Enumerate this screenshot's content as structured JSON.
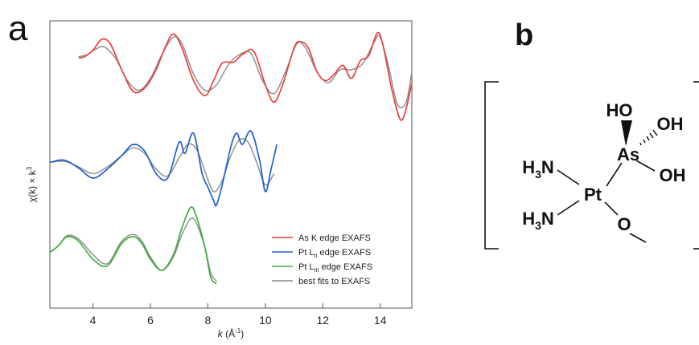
{
  "panel_a_label": "a",
  "panel_b_label": "b",
  "chart_data": {
    "type": "line",
    "title": "",
    "xlabel_main": "k",
    "xlabel_unit": "(Å",
    "xlabel_unit_exp": "-1",
    "xlabel_unit_close": ")",
    "ylabel_main": "χ(k) × k",
    "ylabel_exp": "3",
    "xlim": [
      2.5,
      15.1
    ],
    "x_ticks": [
      4,
      6,
      8,
      10,
      12,
      14
    ],
    "x_tick_labels": [
      "4",
      "6",
      "8",
      "10",
      "12",
      "14"
    ],
    "grid": false,
    "legend_position": "bottom-right",
    "series": [
      {
        "name": "As K edge EXAFS",
        "color": "#e8413b",
        "x": [
          3.5,
          3.7,
          4.0,
          4.3,
          4.6,
          5.0,
          5.4,
          5.8,
          6.2,
          6.5,
          6.8,
          7.1,
          7.5,
          7.9,
          8.2,
          8.5,
          8.9,
          9.2,
          9.6,
          10.0,
          10.3,
          10.6,
          11.0,
          11.2,
          11.5,
          11.8,
          12.1,
          12.4,
          12.7,
          13.0,
          13.3,
          13.6,
          13.9,
          14.1,
          14.4,
          14.7,
          14.9,
          15.1
        ],
        "y": [
          0.85,
          0.9,
          1.2,
          1.7,
          1.5,
          0.3,
          -0.7,
          -0.55,
          0.3,
          1.3,
          1.95,
          1.3,
          -0.2,
          -0.9,
          -0.2,
          0.6,
          0.65,
          1.0,
          1.15,
          -0.4,
          -1.2,
          -0.4,
          1.3,
          1.6,
          1.3,
          0.2,
          -0.2,
          0.1,
          0.5,
          -0.1,
          0.7,
          0.95,
          2.0,
          1.4,
          -0.6,
          -2.0,
          -1.5,
          -0.3
        ]
      },
      {
        "name": "Pt L_II edge EXAFS",
        "color": "#1f5fd0",
        "x": [
          2.5,
          3.0,
          3.5,
          4.0,
          4.5,
          5.0,
          5.4,
          5.8,
          6.2,
          6.6,
          7.0,
          7.2,
          7.5,
          7.8,
          8.0,
          8.2,
          8.3,
          8.5,
          8.8,
          9.0,
          9.2,
          9.5,
          9.8,
          10.0,
          10.2,
          10.4
        ],
        "y": [
          0.7,
          0.8,
          0.45,
          0.0,
          0.4,
          1.0,
          1.5,
          1.2,
          0.2,
          0.0,
          1.6,
          1.1,
          2.0,
          0.2,
          -0.4,
          -1.0,
          -1.2,
          -0.3,
          1.4,
          2.0,
          1.5,
          2.1,
          0.8,
          -0.6,
          0.4,
          1.5
        ]
      },
      {
        "name": "Pt L_III edge EXAFS",
        "color": "#3fae3a",
        "x": [
          2.5,
          2.8,
          3.1,
          3.5,
          4.0,
          4.5,
          5.0,
          5.4,
          5.7,
          6.0,
          6.4,
          6.8,
          7.1,
          7.4,
          7.6,
          7.9,
          8.1,
          8.3
        ],
        "y": [
          0.3,
          0.6,
          1.0,
          0.8,
          0.0,
          -0.3,
          0.7,
          1.0,
          0.7,
          0.0,
          -0.5,
          0.2,
          1.4,
          2.3,
          1.9,
          0.5,
          -0.8,
          -1.1
        ]
      },
      {
        "name": "best fits to EXAFS",
        "color": "#8a8a8a",
        "x": [],
        "y": []
      }
    ],
    "fit_curves": [
      {
        "fits": "As K edge EXAFS",
        "x": [
          3.5,
          3.8,
          4.1,
          4.4,
          4.8,
          5.2,
          5.6,
          6.0,
          6.4,
          6.8,
          7.1,
          7.5,
          7.9,
          8.3,
          8.7,
          9.1,
          9.5,
          9.9,
          10.3,
          10.7,
          11.1,
          11.4,
          11.8,
          12.2,
          12.6,
          13.0,
          13.4,
          13.8,
          14.0,
          14.3,
          14.6,
          14.9,
          15.1
        ],
        "y": [
          0.9,
          1.0,
          1.25,
          1.35,
          0.8,
          -0.2,
          -0.65,
          -0.1,
          1.0,
          1.8,
          1.5,
          0.1,
          -0.65,
          -0.4,
          0.5,
          1.0,
          1.05,
          -0.2,
          -0.8,
          0.2,
          1.5,
          1.3,
          0.2,
          -0.3,
          0.3,
          0.3,
          0.6,
          1.6,
          1.8,
          0.4,
          -1.3,
          -1.2,
          0.2
        ]
      },
      {
        "fits": "Pt L_II edge EXAFS",
        "x": [
          2.5,
          3.0,
          3.5,
          4.0,
          4.5,
          5.0,
          5.4,
          5.8,
          6.2,
          6.6,
          7.0,
          7.3,
          7.6,
          7.9,
          8.2,
          8.5,
          8.8,
          9.1,
          9.4,
          9.7,
          10.0,
          10.3
        ],
        "y": [
          0.7,
          0.75,
          0.5,
          0.2,
          0.5,
          1.0,
          1.35,
          1.1,
          0.4,
          0.1,
          0.9,
          1.5,
          1.3,
          0.3,
          -0.6,
          -0.1,
          1.0,
          1.7,
          1.6,
          0.7,
          -0.3,
          0.2
        ]
      },
      {
        "fits": "Pt L_III edge EXAFS",
        "x": [
          2.5,
          2.8,
          3.1,
          3.5,
          4.0,
          4.5,
          5.0,
          5.4,
          5.7,
          6.0,
          6.4,
          6.8,
          7.1,
          7.4,
          7.6,
          7.9,
          8.1,
          8.3
        ],
        "y": [
          0.3,
          0.6,
          1.05,
          0.9,
          0.2,
          -0.2,
          0.8,
          1.1,
          0.8,
          0.1,
          -0.5,
          0.1,
          1.1,
          1.8,
          1.6,
          0.5,
          -0.6,
          -1.0
        ]
      }
    ]
  },
  "legend_labels": [
    {
      "pre": "As K edge EXAFS",
      "sub": "",
      "post": ""
    },
    {
      "pre": "Pt L",
      "sub": "II",
      "post": " edge EXAFS"
    },
    {
      "pre": "Pt L",
      "sub": "III",
      "post": " edge EXAFS"
    },
    {
      "pre": "best fits to EXAFS",
      "sub": "",
      "post": ""
    }
  ],
  "molecule": {
    "pt": "Pt",
    "as": "As",
    "ho_top": "HO",
    "oh_right_upper": "OH",
    "oh_right_lower": "OH",
    "o": "O",
    "nh3_upper": {
      "h": "H",
      "sub": "3",
      "n": "N"
    },
    "nh3_lower": {
      "h": "H",
      "sub": "3",
      "n": "N"
    }
  }
}
